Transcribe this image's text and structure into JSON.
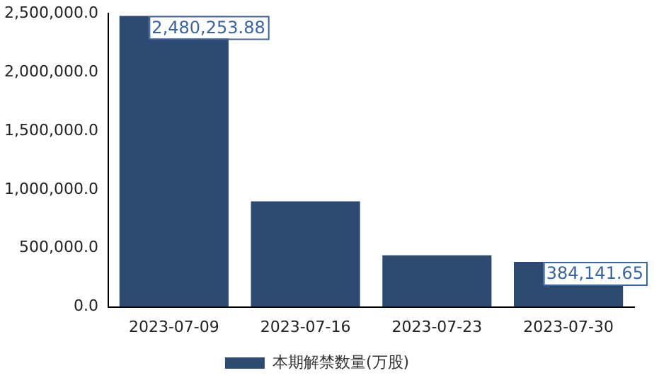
{
  "chart_data": {
    "type": "bar",
    "categories": [
      "2023-07-09",
      "2023-07-16",
      "2023-07-23",
      "2023-07-30"
    ],
    "series": [
      {
        "name": "本期解禁数量(万股)",
        "color": "#2c4a72",
        "values": [
          2480253.88,
          900000,
          440000,
          384141.65
        ],
        "value_labels": [
          "2,480,253.88",
          null,
          null,
          "384,141.65"
        ]
      }
    ],
    "ylim": [
      0,
      2500000
    ],
    "yticks": [
      {
        "value": 0,
        "label": "0.0"
      },
      {
        "value": 500000,
        "label": "500,000.0"
      },
      {
        "value": 1000000,
        "label": "1,000,000.0"
      },
      {
        "value": 1500000,
        "label": "1,500,000.0"
      },
      {
        "value": 2000000,
        "label": "2,000,000.0"
      },
      {
        "value": 2500000,
        "label": "2,500,000.0"
      }
    ],
    "legend": "bottom"
  }
}
